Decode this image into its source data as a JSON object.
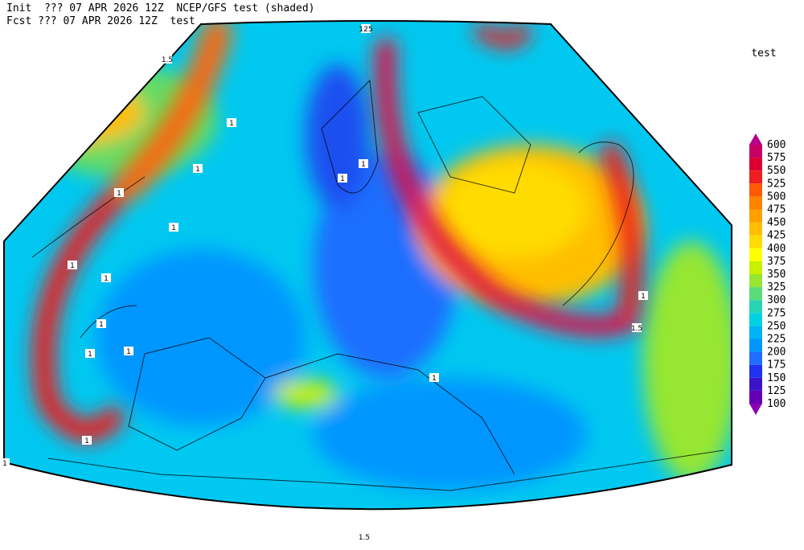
{
  "header": {
    "line1": "Init  ??? 07 APR 2026 12Z  NCEP/GFS test (shaded)",
    "line2": "Fcst ??? 07 APR 2026 12Z  test"
  },
  "legend": {
    "title": "test",
    "levels": [
      600,
      575,
      550,
      525,
      500,
      475,
      450,
      425,
      400,
      375,
      350,
      325,
      300,
      275,
      250,
      225,
      200,
      175,
      150,
      125,
      100
    ],
    "colors": [
      "#b4008c",
      "#c80064",
      "#dc0032",
      "#f01e1e",
      "#ff5a00",
      "#ff8200",
      "#ffa000",
      "#ffbe00",
      "#ffdc00",
      "#ffff00",
      "#c8f000",
      "#96e632",
      "#5adc78",
      "#28d2b4",
      "#00d2e6",
      "#00b4f5",
      "#0096ff",
      "#1e6eff",
      "#1e32f0",
      "#3c14c8",
      "#6400b4",
      "#8c00b4"
    ]
  },
  "contour_labels": [
    "125",
    "1.5",
    "1",
    "1",
    "1",
    "1",
    "1",
    "1",
    "1",
    "1",
    "1",
    "1",
    "1",
    "1",
    "1",
    "1.5",
    "1",
    "1",
    "1.5"
  ]
}
